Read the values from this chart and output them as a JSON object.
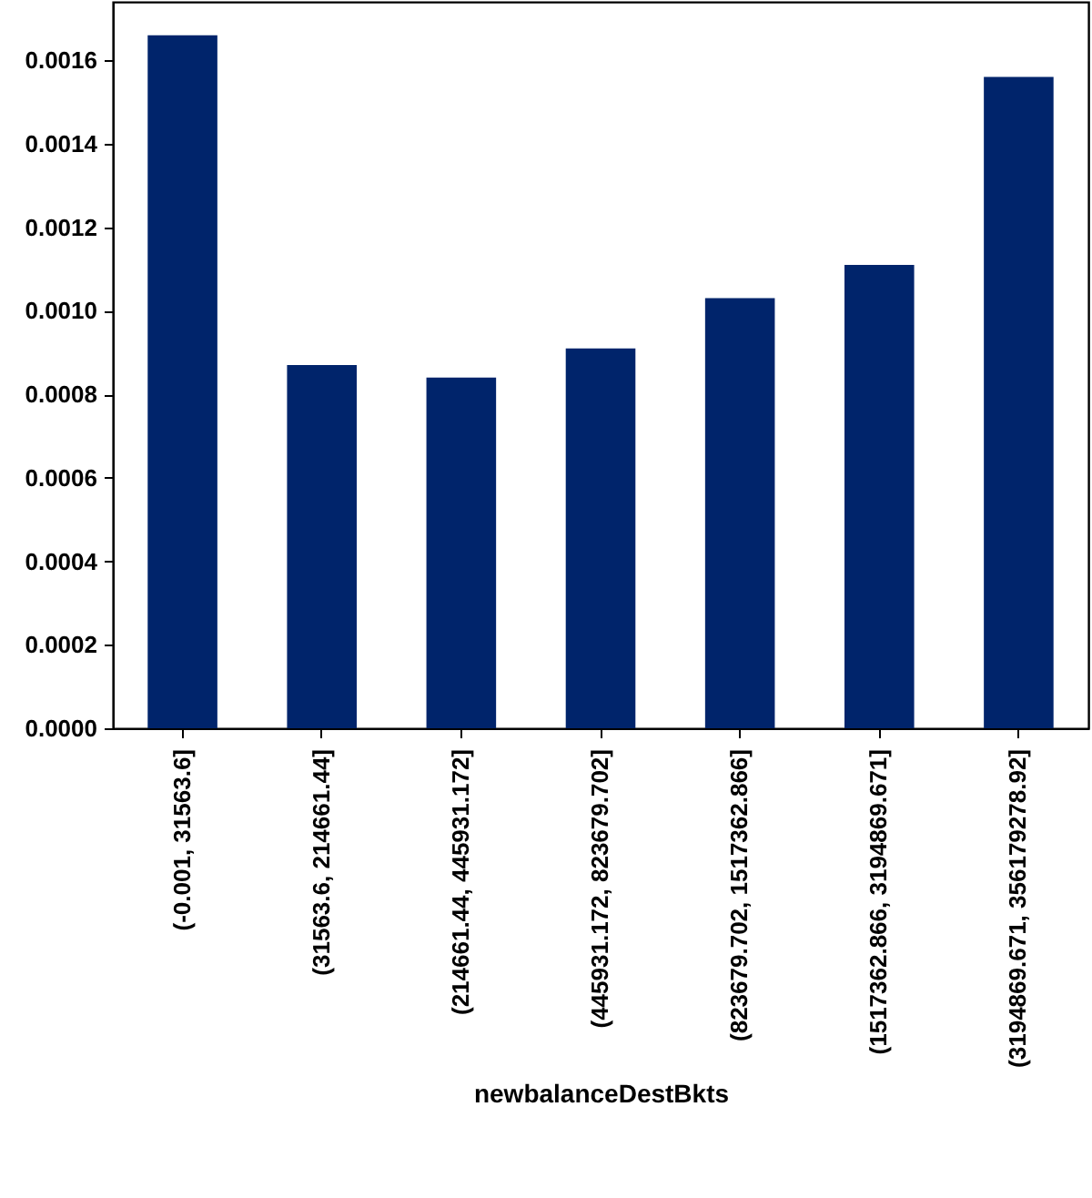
{
  "chart_data": {
    "type": "bar",
    "xlabel": "newbalanceDestBkts",
    "categories": [
      "(-0.001, 31563.6]",
      "(31563.6, 214661.44]",
      "(214661.44, 445931.172]",
      "(445931.172, 823679.702]",
      "(823679.702, 1517362.866]",
      "(1517362.866, 3194869.671]",
      "(3194869.671, 356179278.92]"
    ],
    "values": [
      0.00166,
      0.00087,
      0.00084,
      0.00091,
      0.00103,
      0.00111,
      0.00156
    ],
    "color": "#00246b",
    "ylim": [
      0,
      0.00174
    ],
    "yticks": [
      {
        "value": 0,
        "label": "0.0000"
      },
      {
        "value": 0.0002,
        "label": "0.0002"
      },
      {
        "value": 0.0004,
        "label": "0.0004"
      },
      {
        "value": 0.0006,
        "label": "0.0006"
      },
      {
        "value": 0.0008,
        "label": "0.0008"
      },
      {
        "value": 0.001,
        "label": "0.0010"
      },
      {
        "value": 0.0012,
        "label": "0.0012"
      },
      {
        "value": 0.0014,
        "label": "0.0014"
      },
      {
        "value": 0.0016,
        "label": "0.0016"
      }
    ],
    "grid": false
  }
}
